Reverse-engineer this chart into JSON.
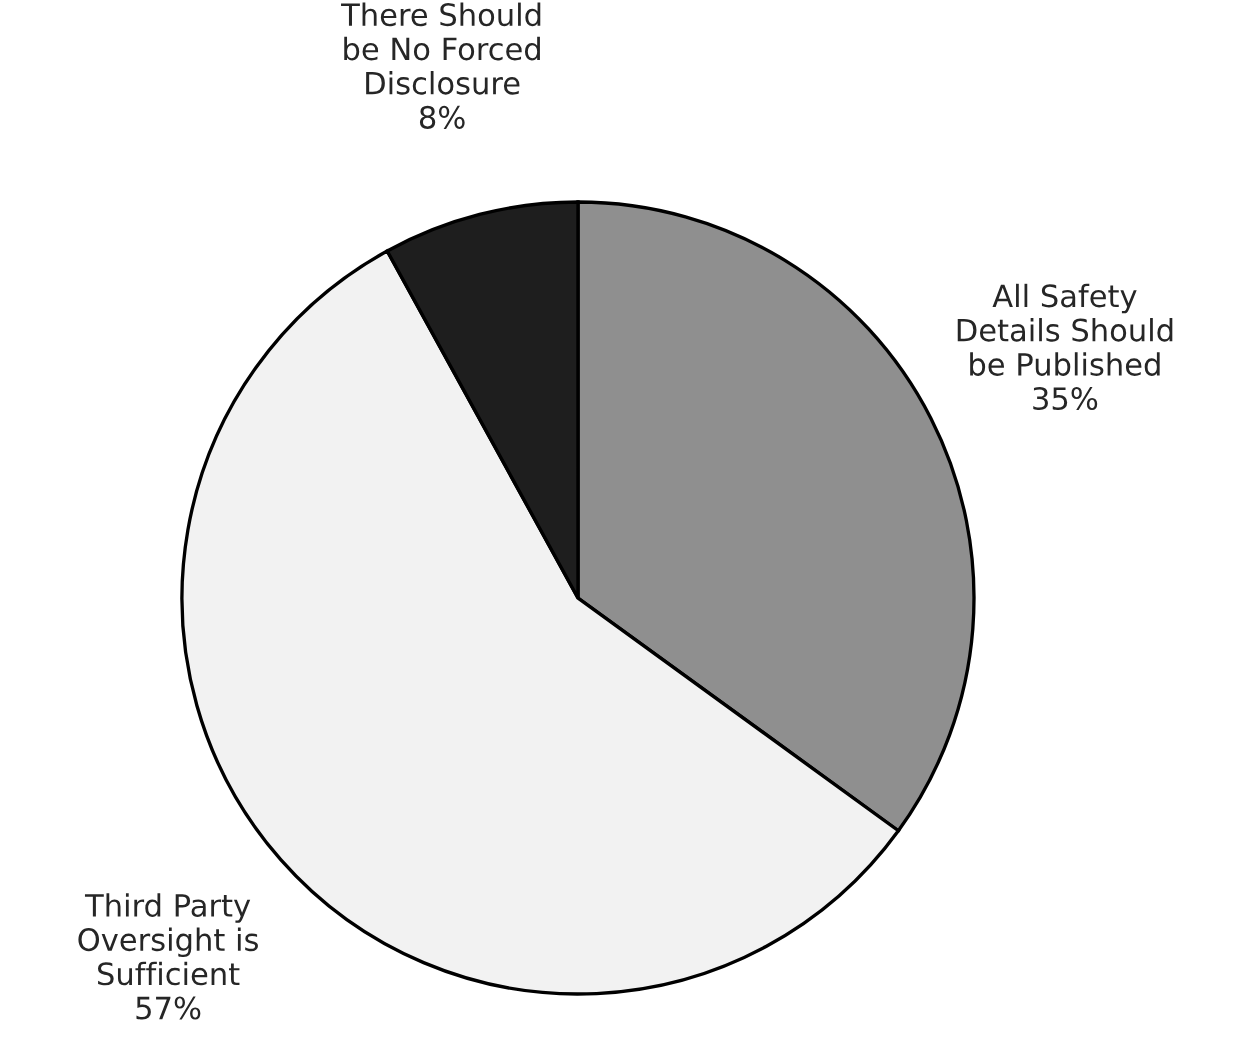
{
  "chart_data": {
    "type": "pie",
    "categories": [
      "All Safety\nDetails Should\nbe Published",
      "Third Party\nOversight is\nSufficient",
      "There Should\nbe No Forced\nDisclosure"
    ],
    "values": [
      35,
      57,
      8
    ],
    "value_labels": [
      "35%",
      "57%",
      "8%"
    ],
    "colors": [
      "#8f8f8f",
      "#f2f2f2",
      "#1e1e1e"
    ]
  }
}
